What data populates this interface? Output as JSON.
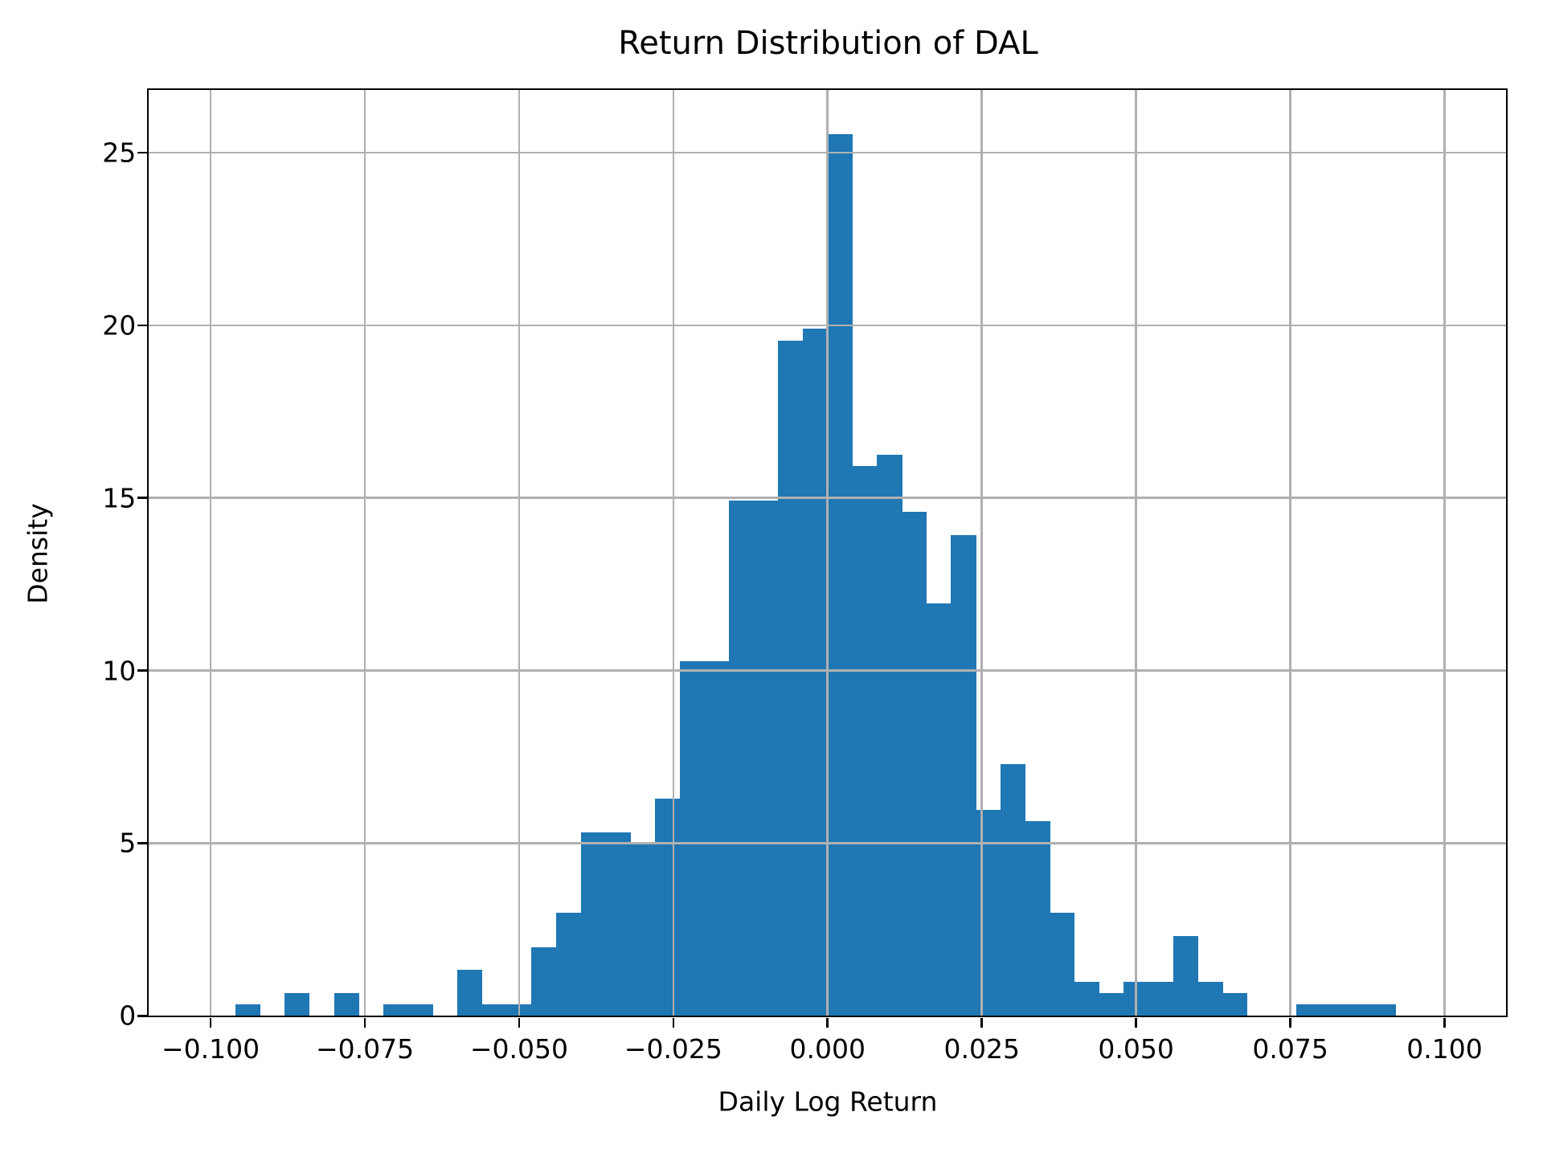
{
  "chart_data": {
    "type": "bar",
    "variant": "histogram",
    "title": "Return Distribution of DAL",
    "xlabel": "Daily Log Return",
    "ylabel": "Density",
    "xlim": [
      -0.11,
      0.11
    ],
    "ylim": [
      0,
      26.81
    ],
    "grid": true,
    "grid_above_bars": true,
    "bin_width": 0.004,
    "total_observations": 754,
    "density_per_count": 0.3316,
    "bins": [
      {
        "start": -0.096,
        "end": -0.092,
        "count": 1,
        "density": 0.332
      },
      {
        "start": -0.092,
        "end": -0.088,
        "count": 0,
        "density": 0.0
      },
      {
        "start": -0.088,
        "end": -0.084,
        "count": 2,
        "density": 0.663
      },
      {
        "start": -0.084,
        "end": -0.08,
        "count": 0,
        "density": 0.0
      },
      {
        "start": -0.08,
        "end": -0.076,
        "count": 2,
        "density": 0.663
      },
      {
        "start": -0.076,
        "end": -0.072,
        "count": 0,
        "density": 0.0
      },
      {
        "start": -0.072,
        "end": -0.068,
        "count": 1,
        "density": 0.332
      },
      {
        "start": -0.068,
        "end": -0.064,
        "count": 1,
        "density": 0.332
      },
      {
        "start": -0.064,
        "end": -0.06,
        "count": 0,
        "density": 0.0
      },
      {
        "start": -0.06,
        "end": -0.056,
        "count": 4,
        "density": 1.326
      },
      {
        "start": -0.056,
        "end": -0.052,
        "count": 1,
        "density": 0.332
      },
      {
        "start": -0.052,
        "end": -0.048,
        "count": 1,
        "density": 0.332
      },
      {
        "start": -0.048,
        "end": -0.044,
        "count": 6,
        "density": 1.989
      },
      {
        "start": -0.044,
        "end": -0.04,
        "count": 9,
        "density": 2.984
      },
      {
        "start": -0.04,
        "end": -0.036,
        "count": 16,
        "density": 5.305
      },
      {
        "start": -0.036,
        "end": -0.032,
        "count": 16,
        "density": 5.305
      },
      {
        "start": -0.032,
        "end": -0.028,
        "count": 15,
        "density": 4.973
      },
      {
        "start": -0.028,
        "end": -0.024,
        "count": 19,
        "density": 6.3
      },
      {
        "start": -0.024,
        "end": -0.02,
        "count": 31,
        "density": 10.279
      },
      {
        "start": -0.02,
        "end": -0.016,
        "count": 31,
        "density": 10.279
      },
      {
        "start": -0.016,
        "end": -0.012,
        "count": 45,
        "density": 14.92
      },
      {
        "start": -0.012,
        "end": -0.008,
        "count": 45,
        "density": 14.92
      },
      {
        "start": -0.008,
        "end": -0.004,
        "count": 59,
        "density": 19.562
      },
      {
        "start": -0.004,
        "end": 0.0,
        "count": 60,
        "density": 19.894
      },
      {
        "start": 0.0,
        "end": 0.004,
        "count": 77,
        "density": 25.531
      },
      {
        "start": 0.004,
        "end": 0.008,
        "count": 48,
        "density": 15.915
      },
      {
        "start": 0.008,
        "end": 0.012,
        "count": 49,
        "density": 16.247
      },
      {
        "start": 0.012,
        "end": 0.016,
        "count": 44,
        "density": 14.589
      },
      {
        "start": 0.016,
        "end": 0.02,
        "count": 36,
        "density": 11.936
      },
      {
        "start": 0.02,
        "end": 0.024,
        "count": 42,
        "density": 13.926
      },
      {
        "start": 0.024,
        "end": 0.028,
        "count": 18,
        "density": 5.968
      },
      {
        "start": 0.028,
        "end": 0.032,
        "count": 22,
        "density": 7.294
      },
      {
        "start": 0.032,
        "end": 0.036,
        "count": 17,
        "density": 5.637
      },
      {
        "start": 0.036,
        "end": 0.04,
        "count": 9,
        "density": 2.984
      },
      {
        "start": 0.04,
        "end": 0.044,
        "count": 3,
        "density": 0.995
      },
      {
        "start": 0.044,
        "end": 0.048,
        "count": 2,
        "density": 0.663
      },
      {
        "start": 0.048,
        "end": 0.052,
        "count": 3,
        "density": 0.995
      },
      {
        "start": 0.052,
        "end": 0.056,
        "count": 3,
        "density": 0.995
      },
      {
        "start": 0.056,
        "end": 0.06,
        "count": 7,
        "density": 2.321
      },
      {
        "start": 0.06,
        "end": 0.064,
        "count": 3,
        "density": 0.995
      },
      {
        "start": 0.064,
        "end": 0.068,
        "count": 2,
        "density": 0.663
      },
      {
        "start": 0.068,
        "end": 0.072,
        "count": 0,
        "density": 0.0
      },
      {
        "start": 0.072,
        "end": 0.076,
        "count": 0,
        "density": 0.0
      },
      {
        "start": 0.076,
        "end": 0.08,
        "count": 1,
        "density": 0.332
      },
      {
        "start": 0.08,
        "end": 0.084,
        "count": 1,
        "density": 0.332
      },
      {
        "start": 0.084,
        "end": 0.088,
        "count": 1,
        "density": 0.332
      },
      {
        "start": 0.088,
        "end": 0.092,
        "count": 1,
        "density": 0.332
      }
    ],
    "xticks": [
      {
        "value": -0.1,
        "label": "−0.100"
      },
      {
        "value": -0.075,
        "label": "−0.075"
      },
      {
        "value": -0.05,
        "label": "−0.050"
      },
      {
        "value": -0.025,
        "label": "−0.025"
      },
      {
        "value": 0.0,
        "label": "0.000"
      },
      {
        "value": 0.025,
        "label": "0.025"
      },
      {
        "value": 0.05,
        "label": "0.050"
      },
      {
        "value": 0.075,
        "label": "0.075"
      },
      {
        "value": 0.1,
        "label": "0.100"
      }
    ],
    "yticks": [
      {
        "value": 0,
        "label": "0"
      },
      {
        "value": 5,
        "label": "5"
      },
      {
        "value": 10,
        "label": "10"
      },
      {
        "value": 15,
        "label": "15"
      },
      {
        "value": 20,
        "label": "20"
      },
      {
        "value": 25,
        "label": "25"
      }
    ]
  },
  "colors": {
    "bar": "#1f77b4",
    "grid": "#b0b0b0",
    "spine": "#000000",
    "text": "#000000",
    "background": "#ffffff"
  }
}
